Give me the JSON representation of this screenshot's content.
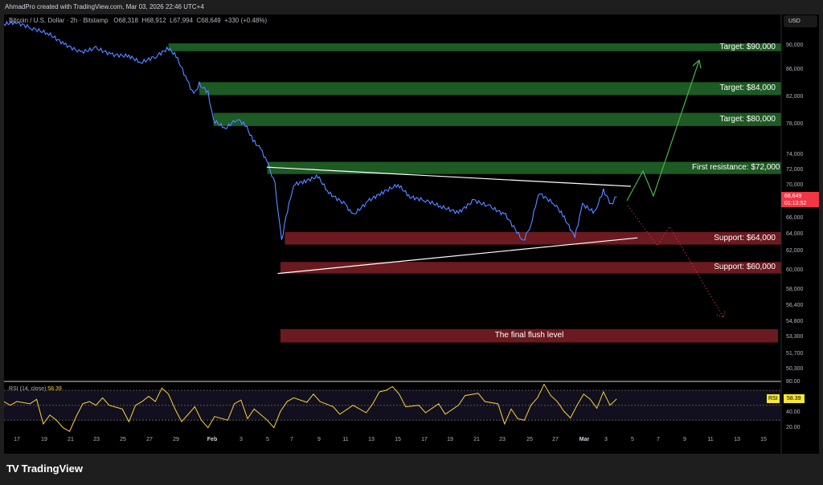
{
  "header": {
    "credit": "AhmadPro created with TradingView.com, Mar 03, 2026 22:46 UTC+4"
  },
  "legend": {
    "symbol": "Bitcoin / U.S. Dollar · 2h · Bitstamp",
    "open": "O68,318",
    "high": "H68,912",
    "low": "L67,994",
    "close": "C68,649",
    "change": "+330 (+0.48%)"
  },
  "currency_button": "USD",
  "current_price": {
    "price": "68,649",
    "countdown": "01:13:52",
    "color": "#f23645"
  },
  "colors": {
    "up_zone": "#1e5a23",
    "down_zone": "#6b1a1f",
    "line": "#2962ff",
    "rsi": "#f7d33a",
    "bullish_arrow": "#4caf50",
    "bearish_arrow": "#f23645"
  },
  "chart_data": {
    "type": "line",
    "title": "Bitcoin / U.S. Dollar · 2h · Bitstamp",
    "price_ticks": [
      "90,000",
      "86,000",
      "82,000",
      "78,000",
      "74,000",
      "72,000",
      "70,000",
      "66,000",
      "64,000",
      "62,000",
      "60,000",
      "58,000",
      "56,400",
      "54,800",
      "53,300",
      "51,700",
      "50,300"
    ],
    "time_ticks": [
      {
        "label": "17"
      },
      {
        "label": "19"
      },
      {
        "label": "21"
      },
      {
        "label": "23"
      },
      {
        "label": "25"
      },
      {
        "label": "27"
      },
      {
        "label": "29"
      },
      {
        "label": "Feb",
        "bold": true
      },
      {
        "label": "3"
      },
      {
        "label": "5"
      },
      {
        "label": "7"
      },
      {
        "label": "9"
      },
      {
        "label": "11"
      },
      {
        "label": "13"
      },
      {
        "label": "15"
      },
      {
        "label": "17"
      },
      {
        "label": "19"
      },
      {
        "label": "21"
      },
      {
        "label": "23"
      },
      {
        "label": "25"
      },
      {
        "label": "27"
      },
      {
        "label": "Mar",
        "bold": true
      },
      {
        "label": "3"
      },
      {
        "label": "5"
      },
      {
        "label": "7"
      },
      {
        "label": "9"
      },
      {
        "label": "11"
      },
      {
        "label": "13"
      },
      {
        "label": "15"
      }
    ],
    "series": [
      {
        "points": [
          [
            "2026-01-16T00",
            93600
          ],
          [
            "2026-01-16T22",
            93900
          ],
          [
            "2026-01-18T04",
            92900
          ],
          [
            "2026-01-19T10",
            92000
          ],
          [
            "2026-01-20T14",
            90300
          ],
          [
            "2026-01-21T20",
            88900
          ],
          [
            "2026-01-23T00",
            89600
          ],
          [
            "2026-01-24T06",
            88500
          ],
          [
            "2026-01-25T12",
            88300
          ],
          [
            "2026-01-26T10",
            87200
          ],
          [
            "2026-01-27T14",
            88300
          ],
          [
            "2026-01-28T12",
            89600
          ],
          [
            "2026-01-29T02",
            88300
          ],
          [
            "2026-01-29T22",
            84500
          ],
          [
            "2026-01-30T10",
            82400
          ],
          [
            "2026-01-30T20",
            83900
          ],
          [
            "2026-01-31T12",
            82700
          ],
          [
            "2026-01-31T22",
            78600
          ],
          [
            "2026-02-01T20",
            77500
          ],
          [
            "2026-02-02T16",
            78800
          ],
          [
            "2026-02-03T08",
            78000
          ],
          [
            "2026-02-03T22",
            75900
          ],
          [
            "2026-02-04T12",
            74800
          ],
          [
            "2026-02-05T02",
            72700
          ],
          [
            "2026-02-05T14",
            70100
          ],
          [
            "2026-02-06T02",
            63200
          ],
          [
            "2026-02-06T10",
            66200
          ],
          [
            "2026-02-07T00",
            70100
          ],
          [
            "2026-02-07T22",
            70600
          ],
          [
            "2026-02-08T20",
            71200
          ],
          [
            "2026-02-09T16",
            69100
          ],
          [
            "2026-02-10T22",
            67700
          ],
          [
            "2026-02-11T12",
            66400
          ],
          [
            "2026-02-12T18",
            68200
          ],
          [
            "2026-02-13T16",
            69100
          ],
          [
            "2026-02-14T22",
            70100
          ],
          [
            "2026-02-15T20",
            68600
          ],
          [
            "2026-02-17T00",
            68200
          ],
          [
            "2026-02-18T06",
            67400
          ],
          [
            "2026-02-19T12",
            66700
          ],
          [
            "2026-02-20T16",
            68200
          ],
          [
            "2026-02-21T22",
            67400
          ],
          [
            "2026-02-23T02",
            66400
          ],
          [
            "2026-02-24T10",
            63200
          ],
          [
            "2026-02-25T00",
            65200
          ],
          [
            "2026-02-25T14",
            69100
          ],
          [
            "2026-02-26T20",
            67700
          ],
          [
            "2026-02-27T10",
            66400
          ],
          [
            "2026-02-28T08",
            63700
          ],
          [
            "2026-02-28T22",
            67700
          ],
          [
            "2026-03-01T20",
            66700
          ],
          [
            "2026-03-02T12",
            69400
          ],
          [
            "2026-03-03T02",
            67700
          ],
          [
            "2026-03-03T12",
            68649
          ]
        ]
      }
    ],
    "zones": [
      {
        "label": "Target: $90,000",
        "top": 90400,
        "bottom": 89100,
        "start": "2026-01-28T12",
        "kind": "up"
      },
      {
        "label": "Target: $84,000",
        "top": 84200,
        "bottom": 82300,
        "start": "2026-01-30T20",
        "kind": "up"
      },
      {
        "label": "Target: $80,000",
        "top": 79700,
        "bottom": 77800,
        "start": "2026-01-31T22",
        "kind": "up"
      },
      {
        "label": "First resistance: $72,000",
        "top": 73100,
        "bottom": 71500,
        "start": "2026-02-05T00",
        "kind": "up"
      },
      {
        "label": "Support: $64,000",
        "top": 64300,
        "bottom": 62800,
        "start": "2026-02-06T08",
        "kind": "down"
      },
      {
        "label": "Support: $60,000",
        "top": 60900,
        "bottom": 59700,
        "start": "2026-02-06T00",
        "kind": "down"
      },
      {
        "label": "The final flush level",
        "top": 54100,
        "bottom": 52800,
        "start": "2026-02-06T00",
        "kind": "down"
      }
    ],
    "trendlines": [
      {
        "from": [
          "2026-02-04T23",
          72400
        ],
        "to": [
          "2026-03-04T14",
          69900
        ]
      },
      {
        "from": [
          "2026-02-05T19",
          59700
        ],
        "to": [
          "2026-03-05T02",
          63600
        ]
      }
    ]
  },
  "rsi": {
    "label": "RSI (14, close)",
    "value": "58.39",
    "badge": "RSI",
    "ticks": [
      "80.00",
      "40.00",
      "20.00"
    ],
    "band": [
      30,
      70
    ],
    "points": [
      [
        "2026-01-16T00",
        55
      ],
      [
        "2026-01-16T12",
        50
      ],
      [
        "2026-01-17T00",
        55
      ],
      [
        "2026-01-18T00",
        52
      ],
      [
        "2026-01-18T12",
        58
      ],
      [
        "2026-01-19T00",
        25
      ],
      [
        "2026-01-19T12",
        37
      ],
      [
        "2026-01-20T00",
        30
      ],
      [
        "2026-01-20T12",
        20
      ],
      [
        "2026-01-21T00",
        15
      ],
      [
        "2026-01-21T12",
        35
      ],
      [
        "2026-01-22T00",
        52
      ],
      [
        "2026-01-22T12",
        55
      ],
      [
        "2026-01-23T00",
        50
      ],
      [
        "2026-01-23T12",
        60
      ],
      [
        "2026-01-24T00",
        50
      ],
      [
        "2026-01-25T00",
        45
      ],
      [
        "2026-01-25T12",
        28
      ],
      [
        "2026-01-26T00",
        50
      ],
      [
        "2026-01-26T12",
        55
      ],
      [
        "2026-01-27T00",
        62
      ],
      [
        "2026-01-27T12",
        55
      ],
      [
        "2026-01-28T00",
        73
      ],
      [
        "2026-01-28T12",
        65
      ],
      [
        "2026-01-29T00",
        45
      ],
      [
        "2026-01-29T12",
        28
      ],
      [
        "2026-01-30T00",
        38
      ],
      [
        "2026-01-30T12",
        48
      ],
      [
        "2026-01-31T00",
        30
      ],
      [
        "2026-01-31T12",
        20
      ],
      [
        "2026-02-01T00",
        35
      ],
      [
        "2026-02-02T00",
        30
      ],
      [
        "2026-02-02T12",
        52
      ],
      [
        "2026-02-03T00",
        57
      ],
      [
        "2026-02-03T12",
        32
      ],
      [
        "2026-02-04T00",
        45
      ],
      [
        "2026-02-05T00",
        30
      ],
      [
        "2026-02-05T12",
        20
      ],
      [
        "2026-02-06T00",
        42
      ],
      [
        "2026-02-06T12",
        55
      ],
      [
        "2026-02-07T00",
        60
      ],
      [
        "2026-02-08T00",
        54
      ],
      [
        "2026-02-08T12",
        65
      ],
      [
        "2026-02-09T00",
        55
      ],
      [
        "2026-02-10T00",
        48
      ],
      [
        "2026-02-10T12",
        38
      ],
      [
        "2026-02-11T12",
        50
      ],
      [
        "2026-02-12T12",
        40
      ],
      [
        "2026-02-13T00",
        52
      ],
      [
        "2026-02-13T12",
        68
      ],
      [
        "2026-02-14T00",
        70
      ],
      [
        "2026-02-14T12",
        75
      ],
      [
        "2026-02-15T00",
        65
      ],
      [
        "2026-02-15T12",
        48
      ],
      [
        "2026-02-16T12",
        50
      ],
      [
        "2026-02-17T00",
        40
      ],
      [
        "2026-02-18T00",
        52
      ],
      [
        "2026-02-18T12",
        38
      ],
      [
        "2026-02-19T12",
        50
      ],
      [
        "2026-02-20T00",
        63
      ],
      [
        "2026-02-21T00",
        66
      ],
      [
        "2026-02-21T12",
        55
      ],
      [
        "2026-02-22T12",
        52
      ],
      [
        "2026-02-23T00",
        25
      ],
      [
        "2026-02-23T12",
        45
      ],
      [
        "2026-02-24T00",
        32
      ],
      [
        "2026-02-24T12",
        30
      ],
      [
        "2026-02-25T00",
        50
      ],
      [
        "2026-02-25T12",
        60
      ],
      [
        "2026-02-26T00",
        78
      ],
      [
        "2026-02-26T12",
        63
      ],
      [
        "2026-02-27T00",
        55
      ],
      [
        "2026-02-27T12",
        42
      ],
      [
        "2026-02-28T00",
        33
      ],
      [
        "2026-02-28T12",
        50
      ],
      [
        "2026-03-01T00",
        65
      ],
      [
        "2026-03-01T12",
        58
      ],
      [
        "2026-03-02T00",
        46
      ],
      [
        "2026-03-02T12",
        68
      ],
      [
        "2026-03-03T00",
        50
      ],
      [
        "2026-03-03T12",
        58.39
      ]
    ]
  },
  "footer": {
    "brand": "TradingView"
  }
}
